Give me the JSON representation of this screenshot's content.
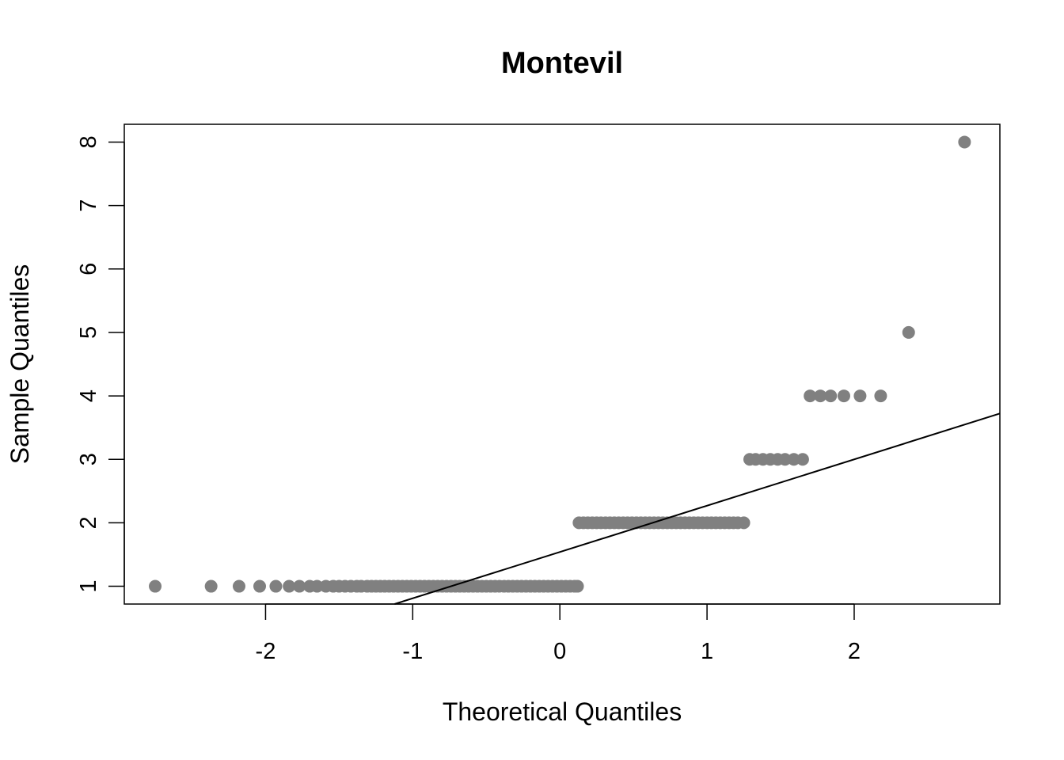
{
  "chart_data": {
    "type": "scatter",
    "title": "Montevil",
    "xlabel": "Theoretical Quantiles",
    "ylabel": "Sample Quantiles",
    "xlim": [
      -2.96,
      2.99
    ],
    "ylim": [
      0.72,
      8.28
    ],
    "x_ticks": [
      -2,
      -1,
      0,
      1,
      2
    ],
    "y_ticks": [
      1,
      2,
      3,
      4,
      5,
      6,
      7,
      8
    ],
    "x_tick_labels": [
      "-2",
      "-1",
      "0",
      "1",
      "2"
    ],
    "y_tick_labels": [
      "1",
      "2",
      "3",
      "4",
      "5",
      "6",
      "7",
      "8"
    ],
    "grid": false,
    "point_color": "#808080",
    "line_color": "#000000",
    "reference_line": {
      "intercept": 1.54,
      "slope": 0.73
    },
    "series": [
      {
        "points": [
          [
            -2.75,
            1
          ],
          [
            -2.37,
            1
          ],
          [
            -2.18,
            1
          ],
          [
            -2.04,
            1
          ],
          [
            -1.93,
            1
          ],
          [
            -1.84,
            1
          ],
          [
            -1.77,
            1
          ],
          [
            -1.7,
            1
          ],
          [
            -1.65,
            1
          ],
          [
            -1.59,
            1
          ],
          [
            -1.54,
            1
          ],
          [
            -1.5,
            1
          ],
          [
            -1.46,
            1
          ],
          [
            -1.42,
            1
          ],
          [
            -1.38,
            1
          ],
          [
            -1.35,
            1
          ],
          [
            -1.31,
            1
          ],
          [
            -1.28,
            1
          ],
          [
            -1.25,
            1
          ],
          [
            -1.22,
            1
          ],
          [
            -1.19,
            1
          ],
          [
            -1.16,
            1
          ],
          [
            -1.13,
            1
          ],
          [
            -1.1,
            1
          ],
          [
            -1.07,
            1
          ],
          [
            -1.04,
            1
          ],
          [
            -1.01,
            1
          ],
          [
            -0.98,
            1
          ],
          [
            -0.95,
            1
          ],
          [
            -0.92,
            1
          ],
          [
            -0.89,
            1
          ],
          [
            -0.86,
            1
          ],
          [
            -0.83,
            1
          ],
          [
            -0.8,
            1
          ],
          [
            -0.77,
            1
          ],
          [
            -0.74,
            1
          ],
          [
            -0.71,
            1
          ],
          [
            -0.68,
            1
          ],
          [
            -0.65,
            1
          ],
          [
            -0.62,
            1
          ],
          [
            -0.59,
            1
          ],
          [
            -0.56,
            1
          ],
          [
            -0.53,
            1
          ],
          [
            -0.5,
            1
          ],
          [
            -0.47,
            1
          ],
          [
            -0.44,
            1
          ],
          [
            -0.41,
            1
          ],
          [
            -0.38,
            1
          ],
          [
            -0.35,
            1
          ],
          [
            -0.32,
            1
          ],
          [
            -0.29,
            1
          ],
          [
            -0.26,
            1
          ],
          [
            -0.23,
            1
          ],
          [
            -0.2,
            1
          ],
          [
            -0.17,
            1
          ],
          [
            -0.14,
            1
          ],
          [
            -0.11,
            1
          ],
          [
            -0.08,
            1
          ],
          [
            -0.05,
            1
          ],
          [
            -0.02,
            1
          ],
          [
            0.01,
            1
          ],
          [
            0.04,
            1
          ],
          [
            0.07,
            1
          ],
          [
            0.1,
            1
          ],
          [
            0.12,
            1
          ],
          [
            0.13,
            2
          ],
          [
            0.16,
            2
          ],
          [
            0.19,
            2
          ],
          [
            0.22,
            2
          ],
          [
            0.25,
            2
          ],
          [
            0.28,
            2
          ],
          [
            0.31,
            2
          ],
          [
            0.34,
            2
          ],
          [
            0.37,
            2
          ],
          [
            0.4,
            2
          ],
          [
            0.43,
            2
          ],
          [
            0.46,
            2
          ],
          [
            0.49,
            2
          ],
          [
            0.52,
            2
          ],
          [
            0.55,
            2
          ],
          [
            0.58,
            2
          ],
          [
            0.61,
            2
          ],
          [
            0.64,
            2
          ],
          [
            0.67,
            2
          ],
          [
            0.7,
            2
          ],
          [
            0.73,
            2
          ],
          [
            0.76,
            2
          ],
          [
            0.79,
            2
          ],
          [
            0.82,
            2
          ],
          [
            0.85,
            2
          ],
          [
            0.88,
            2
          ],
          [
            0.91,
            2
          ],
          [
            0.94,
            2
          ],
          [
            0.97,
            2
          ],
          [
            1.0,
            2
          ],
          [
            1.03,
            2
          ],
          [
            1.06,
            2
          ],
          [
            1.09,
            2
          ],
          [
            1.12,
            2
          ],
          [
            1.15,
            2
          ],
          [
            1.18,
            2
          ],
          [
            1.21,
            2
          ],
          [
            1.25,
            2
          ],
          [
            1.29,
            3
          ],
          [
            1.33,
            3
          ],
          [
            1.38,
            3
          ],
          [
            1.43,
            3
          ],
          [
            1.48,
            3
          ],
          [
            1.53,
            3
          ],
          [
            1.59,
            3
          ],
          [
            1.65,
            3
          ],
          [
            1.7,
            4
          ],
          [
            1.77,
            4
          ],
          [
            1.84,
            4
          ],
          [
            1.93,
            4
          ],
          [
            2.04,
            4
          ],
          [
            2.18,
            4
          ],
          [
            2.37,
            5
          ],
          [
            2.75,
            8
          ]
        ]
      }
    ]
  }
}
